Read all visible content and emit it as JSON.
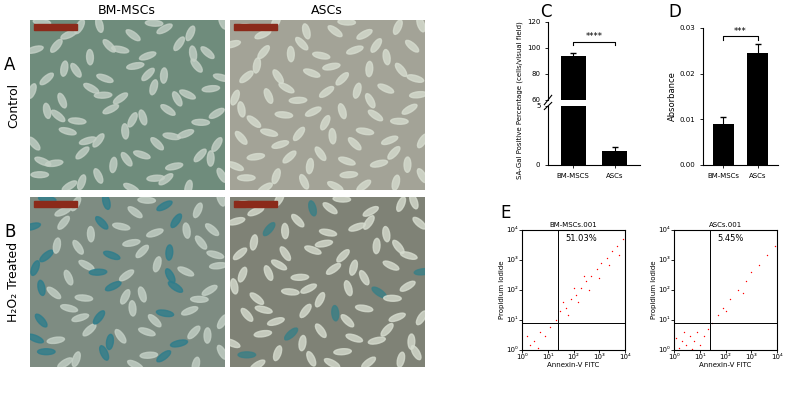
{
  "panel_labels": [
    "A",
    "B",
    "C",
    "D",
    "E"
  ],
  "image_panels": {
    "columns": [
      "BM-MSCs",
      "ASCs"
    ],
    "rows": [
      "Control",
      "H₂O₂ Treated"
    ]
  },
  "chart_data": [
    {
      "type": "bar",
      "categories": [
        "BM-MSCS",
        "ASCs"
      ],
      "values": [
        93.5,
        1.2
      ],
      "errors": [
        2.5,
        0.3
      ],
      "color": "#000000",
      "y_label": "SA-Gal Positive Percentage (cells/visual field)",
      "y_segments": [
        {
          "ylim": [
            0,
            5
          ],
          "yticks": [
            0,
            5
          ]
        },
        {
          "ylim": [
            60,
            120
          ],
          "yticks": [
            60,
            80,
            100,
            120
          ]
        }
      ],
      "significance": "****"
    },
    {
      "type": "bar",
      "categories": [
        "BM-MSCs",
        "ASCs"
      ],
      "values": [
        0.009,
        0.0245
      ],
      "errors": [
        0.0015,
        0.002
      ],
      "color": "#000000",
      "y_label": "Absorbance",
      "ylim": [
        0,
        0.03
      ],
      "yticks": [
        {
          "value": 0,
          "label": "0.00"
        },
        {
          "value": 0.01,
          "label": "0.01"
        },
        {
          "value": 0.02,
          "label": "0.02"
        },
        {
          "value": 0.03,
          "label": "0.03"
        }
      ],
      "significance": "***"
    },
    {
      "type": "scatter",
      "title": "BM-MSCs.001",
      "x_label": "Annexin-V FITC",
      "y_label": "Propidium Iodide",
      "log": true,
      "xlim": [
        1,
        10000
      ],
      "ylim": [
        1,
        10000
      ],
      "xticks": [
        {
          "value": 1,
          "label": "10⁰"
        },
        {
          "value": 10,
          "label": "10¹"
        },
        {
          "value": 100,
          "label": "10²"
        },
        {
          "value": 1000,
          "label": "10³"
        },
        {
          "value": 10000,
          "label": "10⁴"
        }
      ],
      "yticks": [
        {
          "value": 1,
          "label": "10⁰"
        },
        {
          "value": 10,
          "label": "10¹"
        },
        {
          "value": 100,
          "label": "10²"
        },
        {
          "value": 1000,
          "label": "10³"
        },
        {
          "value": 10000,
          "label": "10⁴"
        }
      ],
      "color": "#ff0000",
      "marker": "dot",
      "x": [
        2,
        1.5,
        4,
        3,
        5,
        8,
        12,
        20,
        30,
        50,
        80,
        120,
        200,
        300,
        500,
        800,
        1200,
        2000,
        3000,
        5000,
        8000,
        60,
        150,
        400,
        1000,
        2500,
        6000,
        40,
        100,
        250
      ],
      "y": [
        1.5,
        3,
        1.2,
        2,
        4,
        3,
        6,
        10,
        20,
        25,
        50,
        70,
        120,
        200,
        300,
        500,
        800,
        1200,
        2000,
        3000,
        5000,
        15,
        40,
        100,
        250,
        700,
        1500,
        40,
        120,
        300
      ],
      "quadrant": {
        "x": 25,
        "y": 8
      },
      "annotation": "51.03%"
    },
    {
      "type": "scatter",
      "title": "ASCs.001",
      "x_label": "Annexin-V FITC",
      "y_label": "Propidium Iodide",
      "log": true,
      "xlim": [
        1,
        10000
      ],
      "ylim": [
        1,
        10000
      ],
      "xticks": [
        {
          "value": 1,
          "label": "10⁰"
        },
        {
          "value": 10,
          "label": "10¹"
        },
        {
          "value": 100,
          "label": "10²"
        },
        {
          "value": 1000,
          "label": "10³"
        },
        {
          "value": 10000,
          "label": "10⁴"
        }
      ],
      "yticks": [
        {
          "value": 1,
          "label": "10⁰"
        },
        {
          "value": 10,
          "label": "10¹"
        },
        {
          "value": 100,
          "label": "10²"
        },
        {
          "value": 1000,
          "label": "10³"
        },
        {
          "value": 10000,
          "label": "10⁴"
        }
      ],
      "color": "#ff0000",
      "marker": "dot",
      "x": [
        1.5,
        2,
        3,
        4,
        6,
        8,
        10,
        2.5,
        1.2,
        5,
        15,
        20,
        30,
        50,
        80,
        150,
        300,
        600,
        1000,
        2000,
        4000,
        8000,
        100,
        500
      ],
      "y": [
        1.2,
        2,
        1.5,
        3,
        2,
        4,
        1.5,
        4,
        2.5,
        1.1,
        3,
        5,
        8,
        15,
        25,
        50,
        100,
        200,
        400,
        700,
        1500,
        3000,
        20,
        80
      ],
      "quadrant": {
        "x": 25,
        "y": 8
      },
      "annotation": "5.45%"
    }
  ]
}
